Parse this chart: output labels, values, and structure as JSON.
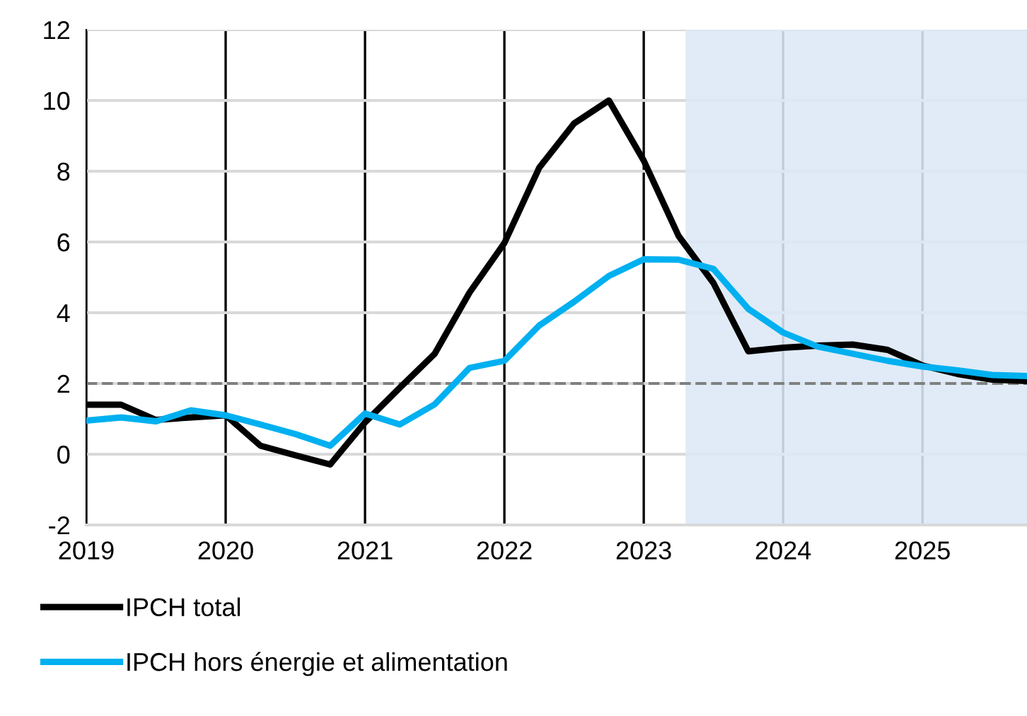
{
  "chart_data": {
    "type": "line",
    "x": [
      2019.0,
      2019.25,
      2019.5,
      2019.75,
      2020.0,
      2020.25,
      2020.5,
      2020.75,
      2021.0,
      2021.25,
      2021.5,
      2021.75,
      2022.0,
      2022.25,
      2022.5,
      2022.75,
      2023.0,
      2023.25,
      2023.5,
      2023.75,
      2024.0,
      2024.25,
      2024.5,
      2024.75,
      2025.0,
      2025.25,
      2025.5,
      2025.75
    ],
    "series": [
      {
        "name": "IPCH total",
        "color": "#000000",
        "values": [
          1.4,
          1.4,
          0.97,
          1.04,
          1.1,
          0.24,
          -0.03,
          -0.29,
          0.9,
          1.88,
          2.84,
          4.57,
          5.97,
          8.1,
          9.35,
          10.0,
          8.3,
          6.17,
          4.84,
          2.91,
          3.01,
          3.07,
          3.1,
          2.95,
          2.51,
          2.27,
          2.11,
          2.07
        ]
      },
      {
        "name": "IPCH hors énergie et alimentation",
        "color": "#00b0f0",
        "values": [
          0.95,
          1.04,
          0.93,
          1.24,
          1.1,
          0.84,
          0.57,
          0.24,
          1.15,
          0.84,
          1.41,
          2.44,
          2.64,
          3.64,
          4.31,
          5.04,
          5.51,
          5.5,
          5.24,
          4.11,
          3.44,
          3.04,
          2.84,
          2.64,
          2.48,
          2.37,
          2.24,
          2.21
        ]
      }
    ],
    "xlim": [
      2019,
      2025.75
    ],
    "xticks": [
      2019,
      2020,
      2021,
      2022,
      2023,
      2024,
      2025
    ],
    "ylim": [
      -2,
      12
    ],
    "yticks": [
      -2,
      0,
      2,
      4,
      6,
      8,
      10,
      12
    ],
    "ref_lines": [
      {
        "axis": "y",
        "value": 2,
        "color": "#808080",
        "line_style": "dashed"
      }
    ],
    "bands": [
      {
        "axis": "x",
        "from": 2023.3,
        "to": 2025.75,
        "color": "#dce8f6"
      }
    ],
    "grid": true,
    "legend": "bottom",
    "marker": "none",
    "line_style": "solid"
  }
}
